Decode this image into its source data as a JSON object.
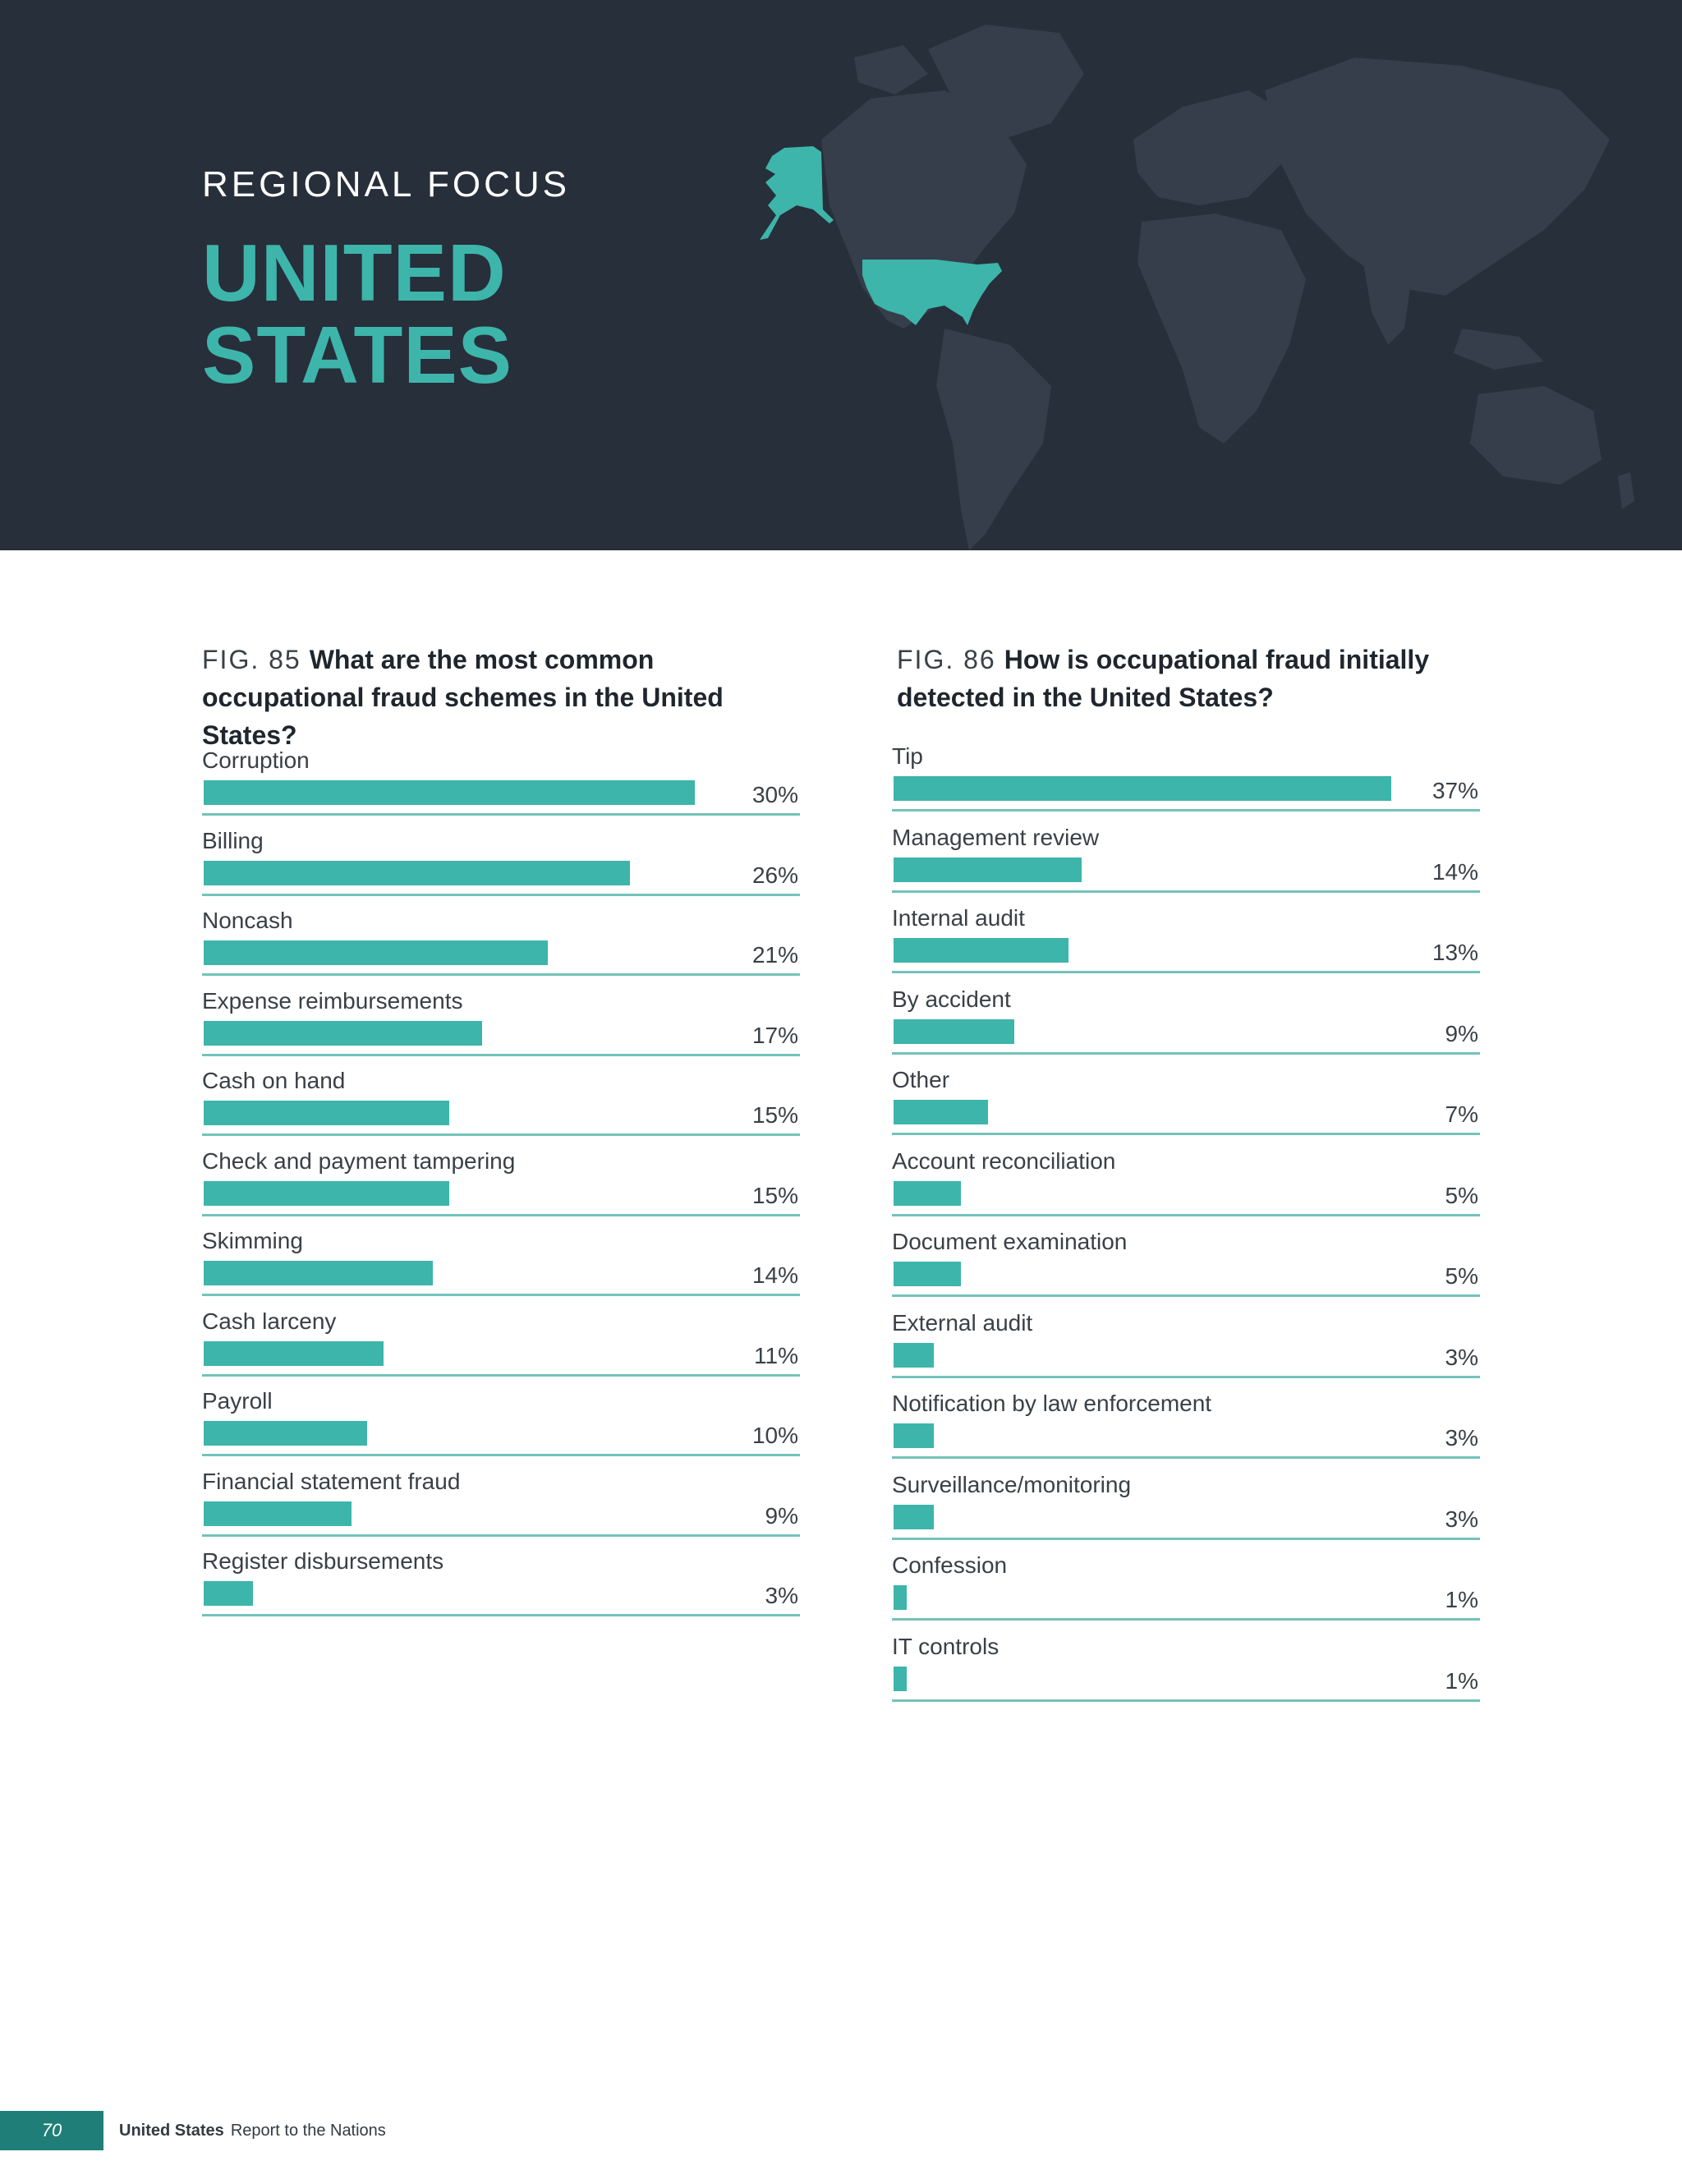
{
  "header": {
    "eyebrow": "REGIONAL FOCUS",
    "title_line1": "UNITED",
    "title_line2": "STATES",
    "map_icon": "world-map-highlight-us",
    "colors": {
      "background": "#272f3a",
      "land": "#353e4a",
      "highlight": "#3db5ab"
    }
  },
  "chart_data": [
    {
      "type": "bar",
      "fig_number": "FIG. 85",
      "title": "What are the most common occupational fraud schemes in the United States?",
      "categories": [
        "Corruption",
        "Billing",
        "Noncash",
        "Expense reimbursements",
        "Cash on hand",
        "Check and payment tampering",
        "Skimming",
        "Cash larceny",
        "Payroll",
        "Financial statement fraud",
        "Register disbursements"
      ],
      "values": [
        30,
        26,
        21,
        17,
        15,
        15,
        14,
        11,
        10,
        9,
        3
      ],
      "value_labels": [
        "30%",
        "26%",
        "21%",
        "17%",
        "15%",
        "15%",
        "14%",
        "11%",
        "10%",
        "9%",
        "3%"
      ],
      "xlim": [
        0,
        36
      ],
      "orientation": "horizontal",
      "grid": false,
      "bar_color": "#3db5ab"
    },
    {
      "type": "bar",
      "fig_number": "FIG. 86",
      "title": "How is occupational fraud initially detected in the United States?",
      "categories": [
        "Tip",
        "Management review",
        "Internal audit",
        "By accident",
        "Other",
        "Account reconciliation",
        "Document examination",
        "External audit",
        "Notification by law enforcement",
        "Surveillance/monitoring",
        "Confession",
        "IT controls"
      ],
      "values": [
        37,
        14,
        13,
        9,
        7,
        5,
        5,
        3,
        3,
        3,
        1,
        1
      ],
      "value_labels": [
        "37%",
        "14%",
        "13%",
        "9%",
        "7%",
        "5%",
        "5%",
        "3%",
        "3%",
        "3%",
        "1%",
        "1%"
      ],
      "xlim": [
        0,
        43
      ],
      "orientation": "horizontal",
      "grid": false,
      "bar_color": "#3db5ab"
    }
  ],
  "footer": {
    "page_number": "70",
    "section": "United States",
    "publication": "Report to the Nations"
  }
}
